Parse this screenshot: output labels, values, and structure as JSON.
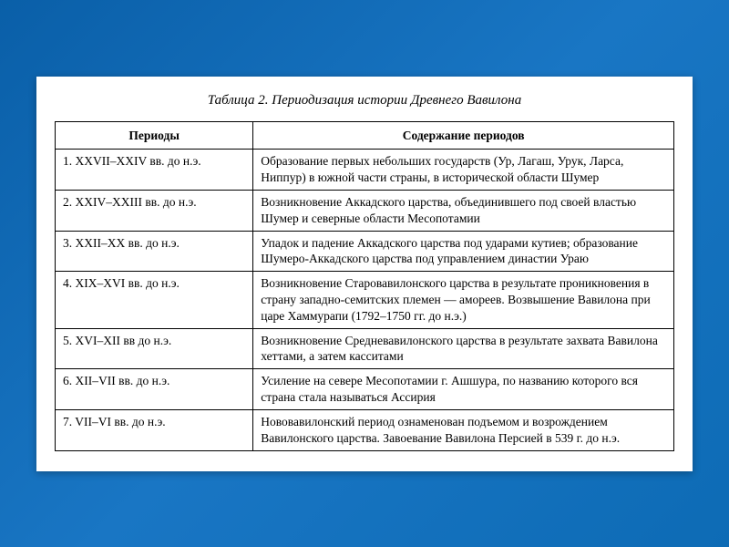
{
  "title": "Таблица 2. Периодизация истории Древнего Вавилона",
  "headers": {
    "periods": "Периоды",
    "content": "Содержание периодов"
  },
  "rows": [
    {
      "period": "1. XXVII–XXIV вв. до н.э.",
      "content": "Образование первых небольших государств (Ур, Лагаш, Урук, Ларса, Ниппур) в южной части страны, в исторической области Шумер"
    },
    {
      "period": "2. XXIV–XXIII вв. до н.э.",
      "content": "Возникновение Аккадского царства, объединившего под своей властью Шумер и северные области Месопотамии"
    },
    {
      "period": "3. XXII–XX вв. до н.э.",
      "content": "Упадок и падение Аккадского царства под ударами кутиев; образование Шумеро-Аккадского царства под управлением династии Ураю"
    },
    {
      "period": "4. XIX–XVI вв. до н.э.",
      "content": "Возникновение Старовавилонского царства в результате проникновения в страну западно-семитских племен — амореев. Возвышение Вавилона при царе Хаммурапи (1792–1750 гг. до н.э.)"
    },
    {
      "period": "5. XVI–XII вв до н.э.",
      "content": "Возникновение Средневавилонского царства в результате захвата Вавилона хеттами, а затем касситами"
    },
    {
      "period": "6. XII–VII вв. до н.э.",
      "content": "Усиление на севере Месопотамии г. Ашшура, по названию которого вся страна стала называться Ассирия"
    },
    {
      "period": "7. VII–VI вв. до н.э.",
      "content": "Нововавилонский период ознаменован подъемом и возрождением Вавилонского царства. Завоевание Вавилона Персией в 539 г. до н.э."
    }
  ],
  "styling": {
    "background_gradient": [
      "#0a5fa8",
      "#1976c4",
      "#0d6bb5"
    ],
    "paper_bg": "#ffffff",
    "text_color": "#000000",
    "border_color": "#000000",
    "title_fontsize": 15,
    "cell_fontsize": 13.5,
    "col_widths_pct": [
      32,
      68
    ],
    "font_family": "Times New Roman"
  }
}
